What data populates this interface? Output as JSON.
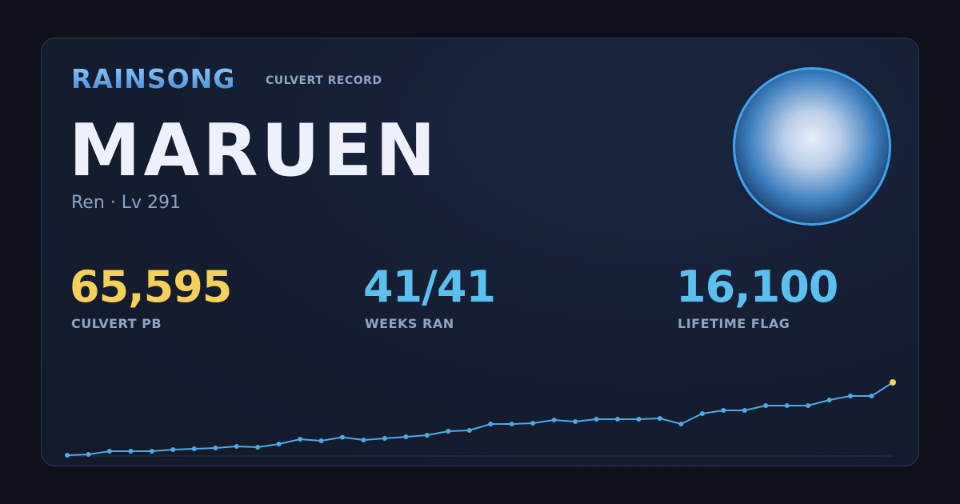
{
  "header": {
    "brand": "RAINSONG",
    "label": "CULVERT RECORD",
    "name": "MARUEN",
    "subtitle": "Ren · Lv 291"
  },
  "stats": [
    {
      "value": "65,595",
      "label": "CULVERT PB"
    },
    {
      "value": "41/41",
      "label": "WEEKS RAN"
    },
    {
      "value": "16,100",
      "label": "LIFETIME FLAG"
    }
  ],
  "chart_data": {
    "type": "line",
    "color": "#4fa9e6",
    "highlight_color": "#f5d05a",
    "values": [
      29195,
      29595,
      31195,
      31195,
      31195,
      31995,
      32395,
      32795,
      33595,
      33195,
      34795,
      37195,
      36395,
      38195,
      36795,
      37595,
      38395,
      39195,
      41195,
      41595,
      44795,
      44795,
      45195,
      46795,
      45995,
      47195,
      47195,
      47195,
      47595,
      44795,
      49995,
      51595,
      51595,
      53995,
      53995,
      53995,
      56795,
      58795,
      58795,
      65595
    ]
  }
}
